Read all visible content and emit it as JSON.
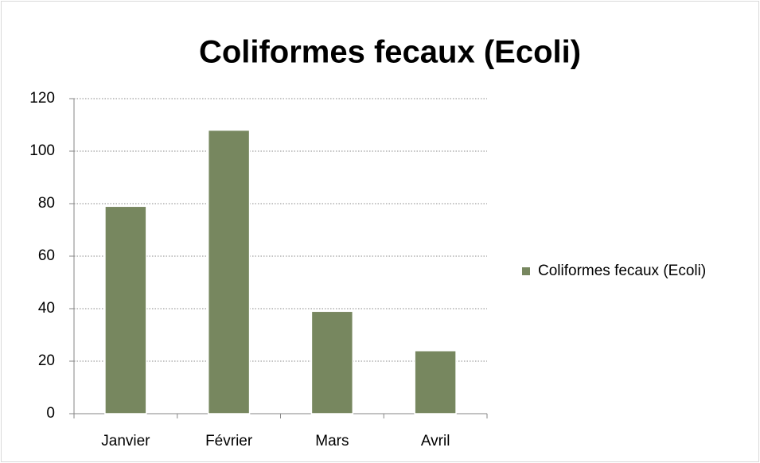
{
  "chart_data": {
    "type": "bar",
    "title": "Coliformes fecaux (Ecoli)",
    "categories": [
      "Janvier",
      "Février",
      "Mars",
      "Avril"
    ],
    "series": [
      {
        "name": "Coliformes fecaux (Ecoli)",
        "color": "#77875f",
        "values": [
          79,
          108,
          39,
          24
        ]
      }
    ],
    "ylim": [
      0,
      120
    ],
    "yticks": [
      0,
      20,
      40,
      60,
      80,
      100,
      120
    ],
    "grid": true,
    "legend": "right"
  }
}
